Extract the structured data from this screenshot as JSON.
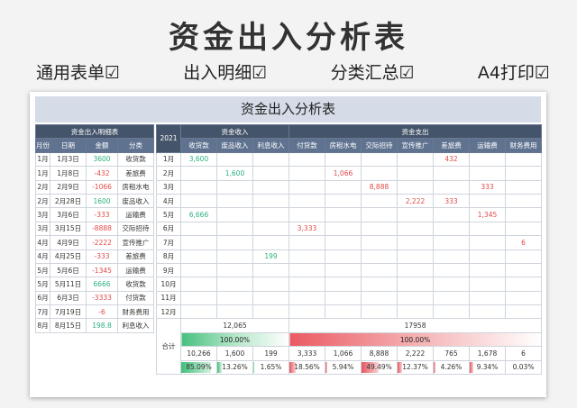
{
  "title": "资金出入分析表",
  "features": [
    "通用表单☑",
    "出入明细☑",
    "分类汇总☑",
    "A4打印☑"
  ],
  "sheet_title": "资金出入分析表",
  "ledger": {
    "section_header": "资金出入明细表",
    "columns": [
      "月份",
      "日期",
      "金额",
      "分类"
    ],
    "rows": [
      {
        "month": "1月",
        "date": "1月3日",
        "amount": "3600",
        "sign": "pos",
        "category": "收货款"
      },
      {
        "month": "1月",
        "date": "1月8日",
        "amount": "-432",
        "sign": "neg",
        "category": "差旅费"
      },
      {
        "month": "2月",
        "date": "2月9日",
        "amount": "-1066",
        "sign": "neg",
        "category": "房租水电"
      },
      {
        "month": "2月",
        "date": "2月28日",
        "amount": "1600",
        "sign": "pos",
        "category": "废品收入"
      },
      {
        "month": "3月",
        "date": "3月6日",
        "amount": "-333",
        "sign": "neg",
        "category": "运输费"
      },
      {
        "month": "3月",
        "date": "3月15日",
        "amount": "-8888",
        "sign": "neg",
        "category": "交际招待"
      },
      {
        "month": "4月",
        "date": "4月9日",
        "amount": "-2222",
        "sign": "neg",
        "category": "宣传推广"
      },
      {
        "month": "4月",
        "date": "4月25日",
        "amount": "-333",
        "sign": "neg",
        "category": "差旅费"
      },
      {
        "month": "5月",
        "date": "5月6日",
        "amount": "-1345",
        "sign": "neg",
        "category": "运输费"
      },
      {
        "month": "5月",
        "date": "5月11日",
        "amount": "6666",
        "sign": "pos",
        "category": "收货款"
      },
      {
        "month": "6月",
        "date": "6月3日",
        "amount": "-3333",
        "sign": "neg",
        "category": "付货款"
      },
      {
        "month": "7月",
        "date": "7月19日",
        "amount": "-6",
        "sign": "neg",
        "category": "财务费用"
      },
      {
        "month": "8月",
        "date": "8月15日",
        "amount": "198.8",
        "sign": "pos",
        "category": "利息收入"
      }
    ]
  },
  "summary": {
    "year": "2021",
    "income_header": "资金收入",
    "expense_header": "资金支出",
    "income_columns": [
      "收货款",
      "废品收入",
      "利息收入"
    ],
    "expense_columns": [
      "付货款",
      "房租水电",
      "交际招待",
      "宣传推广",
      "差旅费",
      "运输费",
      "财务费用"
    ],
    "rows": [
      {
        "month": "1月",
        "cells": [
          "3,600",
          "",
          "",
          "",
          "",
          "",
          "",
          "432",
          "",
          ""
        ]
      },
      {
        "month": "2月",
        "cells": [
          "",
          "1,600",
          "",
          "",
          "1,066",
          "",
          "",
          "",
          "",
          ""
        ]
      },
      {
        "month": "3月",
        "cells": [
          "",
          "",
          "",
          "",
          "",
          "8,888",
          "",
          "",
          "333",
          ""
        ]
      },
      {
        "month": "4月",
        "cells": [
          "",
          "",
          "",
          "",
          "",
          "",
          "2,222",
          "333",
          "",
          ""
        ]
      },
      {
        "month": "5月",
        "cells": [
          "6,666",
          "",
          "",
          "",
          "",
          "",
          "",
          "",
          "1,345",
          ""
        ]
      },
      {
        "month": "6月",
        "cells": [
          "",
          "",
          "",
          "3,333",
          "",
          "",
          "",
          "",
          "",
          ""
        ]
      },
      {
        "month": "7月",
        "cells": [
          "",
          "",
          "",
          "",
          "",
          "",
          "",
          "",
          "",
          "6"
        ]
      },
      {
        "month": "8月",
        "cells": [
          "",
          "",
          "199",
          "",
          "",
          "",
          "",
          "",
          "",
          ""
        ]
      },
      {
        "month": "9月",
        "cells": [
          "",
          "",
          "",
          "",
          "",
          "",
          "",
          "",
          "",
          ""
        ]
      },
      {
        "month": "10月",
        "cells": [
          "",
          "",
          "",
          "",
          "",
          "",
          "",
          "",
          "",
          ""
        ]
      },
      {
        "month": "11月",
        "cells": [
          "",
          "",
          "",
          "",
          "",
          "",
          "",
          "",
          "",
          ""
        ]
      },
      {
        "month": "12月",
        "cells": [
          "",
          "",
          "",
          "",
          "",
          "",
          "",
          "",
          "",
          ""
        ]
      }
    ],
    "total_label": "合计",
    "income_total": "12,065",
    "expense_total": "17958",
    "income_share": "100.00%",
    "expense_share": "100.00%",
    "column_totals": [
      "10,266",
      "1,600",
      "199",
      "3,333",
      "1,066",
      "8,888",
      "2,222",
      "765",
      "1,678",
      "6"
    ],
    "column_percents": [
      "85.09%",
      "13.26%",
      "1.65%",
      "18.56%",
      "5.94%",
      "49.49%",
      "12.37%",
      "4.26%",
      "9.34%",
      "0.03%"
    ],
    "column_percent_values": [
      0.8509,
      0.1326,
      0.0165,
      0.1856,
      0.0594,
      0.4949,
      0.1237,
      0.0426,
      0.0934,
      0.0003
    ]
  },
  "colors": {
    "header_bg": "#44546a",
    "income_green": "#2db07f",
    "expense_red": "#e04a4a"
  }
}
